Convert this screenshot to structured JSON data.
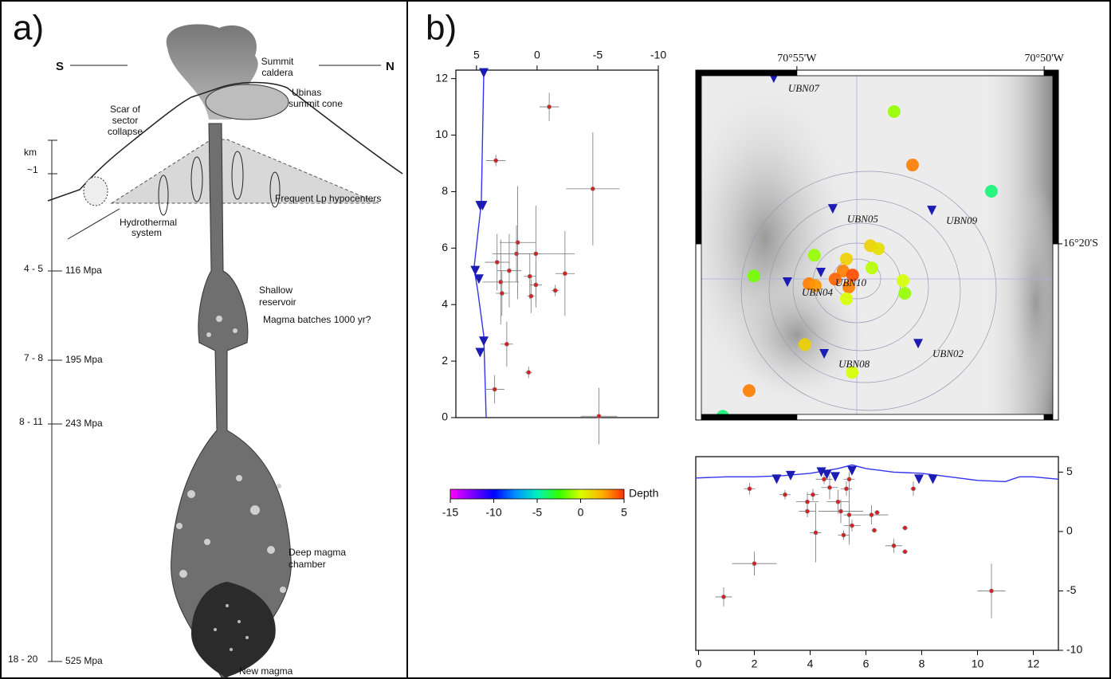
{
  "panel_a": {
    "label": "a)",
    "south": "S",
    "north": "N",
    "summit_caldera": [
      "Summit",
      "caldera"
    ],
    "summit_cone": [
      "Ubinas",
      "summit cone"
    ],
    "sector_collapse": [
      "Scar of",
      "sector",
      "collapse"
    ],
    "km": "km",
    "depth_1": "~1",
    "lp_hypocenters": "Frequent Lp hypocenters",
    "hydrothermal": [
      "Hydrothermal",
      "system"
    ],
    "depth_4_5": "4 - 5",
    "pressure_116": "116 Mpa",
    "shallow_reservoir": [
      "Shallow",
      "reservoir"
    ],
    "magma_batches": "Magma batches 1000 yr?",
    "depth_7_8": "7 - 8",
    "pressure_195": "195 Mpa",
    "depth_8_11": "8 - 11",
    "pressure_243": "243 Mpa",
    "deep_chamber": [
      "Deep magma",
      "chamber"
    ],
    "depth_18_20": "18 - 20",
    "pressure_525": "525 Mpa",
    "new_magma": "New magma"
  },
  "panel_b": {
    "label": "b)"
  },
  "chart_data": [
    {
      "type": "cross-section",
      "xlim": [
        6.7,
        -10
      ],
      "xticks": [
        5,
        0,
        -5,
        -10
      ],
      "x_axis_side": "top",
      "ylim": [
        0,
        12.3
      ],
      "yticks": [
        0,
        2,
        4,
        6,
        8,
        10,
        12
      ],
      "y_axis_side": "left",
      "event_color": "#d42020",
      "station_color": "#1c1cb4",
      "line_color": "#3333ee",
      "events": {
        "x": [
          -1.0,
          3.4,
          -4.6,
          1.6,
          1.7,
          0.1,
          -2.3,
          3.3,
          3.0,
          2.3,
          0.6,
          0.1,
          0.5,
          2.9,
          -1.5,
          2.5,
          0.7,
          3.5,
          -5.1
        ],
        "y": [
          11.0,
          9.1,
          8.1,
          6.2,
          5.8,
          5.8,
          5.1,
          5.5,
          4.8,
          5.2,
          5.0,
          4.7,
          4.3,
          4.4,
          4.5,
          2.6,
          1.6,
          1.0,
          0.05
        ],
        "xerr": [
          0.8,
          0.8,
          2.2,
          1.5,
          2.0,
          3.2,
          0.8,
          1.0,
          1.5,
          1.0,
          0.5,
          0.5,
          0.3,
          0.5,
          0.3,
          0.5,
          0.3,
          0.8,
          1.5
        ],
        "yerr": [
          0.5,
          0.2,
          2.0,
          2.0,
          1.0,
          1.7,
          1.5,
          1.0,
          1.5,
          1.3,
          0.8,
          0.8,
          0.6,
          0.8,
          0.2,
          0.8,
          0.2,
          0.5,
          1.0
        ]
      },
      "stations": {
        "x": [
          4.4,
          4.7,
          4.5,
          5.1,
          4.8,
          4.4,
          4.7
        ],
        "y": [
          12.2,
          7.5,
          7.5,
          5.2,
          4.9,
          2.7,
          2.3
        ]
      },
      "topography": {
        "x": [
          4.4,
          4.6,
          5.2,
          4.9,
          4.4,
          4.2
        ],
        "y": [
          12.2,
          7.6,
          5.3,
          4.5,
          2.9,
          0
        ]
      }
    },
    {
      "type": "colorbar",
      "label": "Depth",
      "xlim": [
        -15,
        5
      ],
      "xticks": [
        -15,
        -10,
        -5,
        0,
        5
      ],
      "colors": [
        "#ff00ff",
        "#8000ff",
        "#0000ff",
        "#0090ff",
        "#00f0c0",
        "#30ff00",
        "#d8ff00",
        "#ffb000",
        "#ff3000"
      ]
    },
    {
      "type": "map",
      "xlim": [
        -70.9508,
        -70.8285
      ],
      "xticks": [
        {
          "value": -70.9167,
          "label": "70°55'W"
        },
        {
          "value": -70.8333,
          "label": "70°50'W"
        }
      ],
      "ylim": [
        -16.3903,
        -16.2771
      ],
      "yticks": [
        {
          "value": -16.3333,
          "label": "16°20'S"
        }
      ],
      "station_color": "#1c1cb4",
      "events": {
        "x": [
          -70.8839,
          -70.8777,
          -70.8511,
          -70.9108,
          -70.9312,
          -70.9126,
          -70.9105,
          -70.9,
          -70.9011,
          -70.9038,
          -70.8979,
          -70.8992,
          -70.8919,
          -70.8892,
          -70.8914,
          -70.8809,
          -70.8803,
          -70.9,
          -70.914,
          -70.8981,
          -70.9328,
          -70.9417
        ],
        "y": [
          -16.2905,
          -16.3078,
          -16.3163,
          -16.337,
          -16.3437,
          -16.3462,
          -16.3468,
          -16.3382,
          -16.3421,
          -16.3447,
          -16.3434,
          -16.3473,
          -16.3339,
          -16.3349,
          -16.3411,
          -16.3452,
          -16.3493,
          -16.3511,
          -16.3659,
          -16.3749,
          -16.3808,
          -16.3891
        ],
        "depth": [
          -1,
          3.5,
          -4,
          -1,
          -1.5,
          3.5,
          3,
          1.5,
          3.5,
          4,
          4.5,
          3.5,
          1.5,
          1,
          -0.5,
          0,
          -1,
          0,
          1.5,
          0,
          3.5,
          -4
        ]
      },
      "stations": {
        "names": [
          "UBN07",
          "UBN05",
          "UBN09",
          "UBN10",
          "UBN04",
          "UBN08",
          "UBN02"
        ],
        "x": [
          -70.9245,
          -70.9046,
          -70.8712,
          -70.9086,
          -70.9199,
          -70.9075,
          -70.8758
        ],
        "y": [
          -16.2797,
          -16.322,
          -16.3225,
          -16.3426,
          -16.3457,
          -16.3689,
          -16.3656
        ]
      }
    },
    {
      "type": "cross-section",
      "xlim": [
        -0.1,
        12.9
      ],
      "xticks": [
        0,
        2,
        4,
        6,
        8,
        10,
        12
      ],
      "x_axis_side": "bottom",
      "ylim": [
        -10,
        6.3
      ],
      "yticks": [
        5,
        0,
        -5,
        -10
      ],
      "y_axis_side": "right",
      "event_color": "#d42020",
      "station_color": "#1c1cb4",
      "line_color": "#3333ee",
      "events": {
        "x": [
          1.83,
          3.1,
          3.9,
          3.9,
          4.1,
          4.2,
          4.5,
          4.7,
          5.0,
          5.1,
          5.3,
          5.4,
          5.4,
          5.5,
          5.2,
          6.2,
          6.4,
          6.3,
          7.0,
          7.4,
          7.4,
          7.7,
          2.0,
          0.9,
          10.5
        ],
        "y": [
          3.6,
          3.1,
          2.5,
          1.7,
          3.1,
          -0.1,
          4.4,
          3.7,
          2.5,
          1.7,
          3.6,
          1.4,
          4.4,
          0.5,
          -0.3,
          1.4,
          1.6,
          0.1,
          -1.2,
          0.3,
          -1.7,
          3.6,
          -2.7,
          -5.5,
          -5.0
        ],
        "xerr": [
          0.2,
          0.2,
          0.4,
          0.3,
          0.2,
          0.2,
          0.3,
          0.3,
          0.4,
          0.8,
          0.2,
          0.2,
          0.2,
          0.3,
          0.2,
          0.6,
          0.1,
          0.1,
          0.3,
          0.1,
          0.1,
          0.1,
          0.8,
          0.3,
          0.5
        ],
        "yerr": [
          0.5,
          0.4,
          0.8,
          0.5,
          0.5,
          2.5,
          0.4,
          1.0,
          1.0,
          1.0,
          0.6,
          2.5,
          0.6,
          0.5,
          0.4,
          0.8,
          0.2,
          0.2,
          0.6,
          0.1,
          0.1,
          0.6,
          1.0,
          0.8,
          2.3
        ]
      },
      "stations": {
        "x": [
          2.8,
          3.3,
          4.4,
          4.6,
          4.9,
          5.5,
          7.9,
          8.4
        ],
        "y": [
          4.4,
          4.7,
          5.0,
          4.8,
          4.6,
          5.1,
          4.4,
          4.4
        ]
      },
      "topography": {
        "x": [
          -0.1,
          1,
          2,
          3,
          4,
          4.5,
          5,
          5.5,
          6,
          7,
          8,
          9,
          10,
          11,
          11.5,
          12,
          12.9
        ],
        "y": [
          4.5,
          4.6,
          4.6,
          4.7,
          4.9,
          5.1,
          5.3,
          5.6,
          5.3,
          5.0,
          4.9,
          4.6,
          4.3,
          4.2,
          4.6,
          4.6,
          4.4
        ]
      }
    }
  ]
}
